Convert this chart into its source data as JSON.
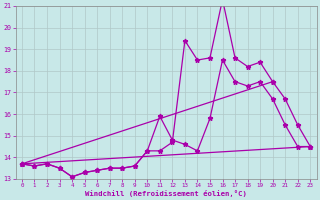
{
  "xlabel": "Windchill (Refroidissement éolien,°C)",
  "xlim": [
    -0.5,
    23.5
  ],
  "ylim": [
    13,
    21
  ],
  "yticks": [
    13,
    14,
    15,
    16,
    17,
    18,
    19,
    20,
    21
  ],
  "xticks": [
    0,
    1,
    2,
    3,
    4,
    5,
    6,
    7,
    8,
    9,
    10,
    11,
    12,
    13,
    14,
    15,
    16,
    17,
    18,
    19,
    20,
    21,
    22,
    23
  ],
  "bg_color": "#c8e8e8",
  "line_color": "#aa00aa",
  "grid_color": "#b0c8c8",
  "line1": [
    13.7,
    13.6,
    13.7,
    13.5,
    13.1,
    13.3,
    13.4,
    13.5,
    13.5,
    13.6,
    14.3,
    15.9,
    14.8,
    14.6,
    14.3,
    15.8,
    18.5,
    17.5,
    17.3,
    17.5,
    16.7,
    15.5,
    14.5,
    14.5
  ],
  "line2": [
    13.7,
    13.6,
    13.7,
    13.5,
    13.1,
    13.3,
    13.4,
    13.5,
    13.5,
    13.6,
    14.3,
    14.3,
    14.7,
    19.4,
    18.5,
    18.6,
    21.3,
    18.6,
    18.2,
    18.4,
    17.5,
    16.7,
    15.5,
    14.5
  ],
  "line3": [
    [
      0,
      13.7
    ],
    [
      20,
      17.5
    ]
  ],
  "line4": [
    [
      0,
      13.7
    ],
    [
      23,
      14.5
    ]
  ]
}
